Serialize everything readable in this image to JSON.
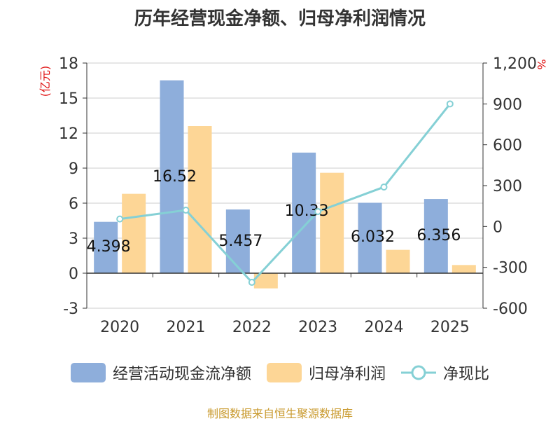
{
  "title": "历年经营现金净额、归母净利润情况",
  "source": "制图数据来自恒生聚源数据库",
  "colors": {
    "cash": "#8eaedb",
    "profit": "#fdd696",
    "ratio": "#85d0d5",
    "axis": "#333333",
    "unit_left": "#e01010"
  },
  "chart_data": {
    "type": "bar",
    "categories": [
      "2020",
      "2021",
      "2022",
      "2023",
      "2024",
      "2025"
    ],
    "series": [
      {
        "name": "经营活动现金流净额",
        "type": "bar",
        "axis": "left",
        "values": [
          4.398,
          16.52,
          5.457,
          10.33,
          6.032,
          6.356
        ],
        "labels": [
          "4.398",
          "16.52",
          "5.457",
          "10.33",
          "6.032",
          "6.356"
        ]
      },
      {
        "name": "归母净利润",
        "type": "bar",
        "axis": "left",
        "values": [
          6.8,
          12.6,
          -1.3,
          8.6,
          2.0,
          0.7
        ]
      },
      {
        "name": "净现比",
        "type": "line",
        "axis": "right",
        "values": [
          55,
          120,
          -410,
          110,
          290,
          900
        ]
      }
    ],
    "y_left": {
      "unit": "(亿元)",
      "ticks": [
        "18",
        "15",
        "12",
        "9",
        "6",
        "3",
        "0",
        "-3"
      ],
      "min": -3,
      "max": 18
    },
    "y_right": {
      "unit": "%",
      "ticks": [
        "1,200",
        "900",
        "600",
        "300",
        "0",
        "-300",
        "-600"
      ],
      "min": -600,
      "max": 1200
    },
    "grid": true,
    "legend_position": "bottom"
  }
}
